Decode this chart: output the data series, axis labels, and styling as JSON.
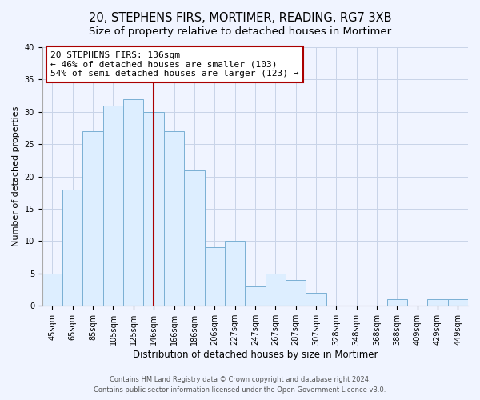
{
  "title": "20, STEPHENS FIRS, MORTIMER, READING, RG7 3XB",
  "subtitle": "Size of property relative to detached houses in Mortimer",
  "xlabel": "Distribution of detached houses by size in Mortimer",
  "ylabel": "Number of detached properties",
  "bar_labels": [
    "45sqm",
    "65sqm",
    "85sqm",
    "105sqm",
    "125sqm",
    "146sqm",
    "166sqm",
    "186sqm",
    "206sqm",
    "227sqm",
    "247sqm",
    "267sqm",
    "287sqm",
    "307sqm",
    "328sqm",
    "348sqm",
    "368sqm",
    "388sqm",
    "409sqm",
    "429sqm",
    "449sqm"
  ],
  "bar_values": [
    5,
    18,
    27,
    31,
    32,
    30,
    27,
    21,
    9,
    10,
    3,
    5,
    4,
    2,
    0,
    0,
    0,
    1,
    0,
    1,
    1
  ],
  "bar_color": "#ddeeff",
  "bar_edge_color": "#7ab0d4",
  "vline_x_index": 5,
  "vline_color": "#aa0000",
  "annotation_text": "20 STEPHENS FIRS: 136sqm\n← 46% of detached houses are smaller (103)\n54% of semi-detached houses are larger (123) →",
  "annotation_fontsize": 8,
  "annotation_box_color": "#ffffff",
  "annotation_box_edge": "#aa0000",
  "ylim": [
    0,
    40
  ],
  "yticks": [
    0,
    5,
    10,
    15,
    20,
    25,
    30,
    35,
    40
  ],
  "footer_line1": "Contains HM Land Registry data © Crown copyright and database right 2024.",
  "footer_line2": "Contains public sector information licensed under the Open Government Licence v3.0.",
  "title_fontsize": 10.5,
  "subtitle_fontsize": 9.5,
  "xlabel_fontsize": 8.5,
  "ylabel_fontsize": 8,
  "tick_fontsize": 7,
  "footer_fontsize": 6,
  "background_color": "#f0f4ff",
  "plot_bg_color": "#f0f4ff",
  "grid_color": "#c8d4e8"
}
